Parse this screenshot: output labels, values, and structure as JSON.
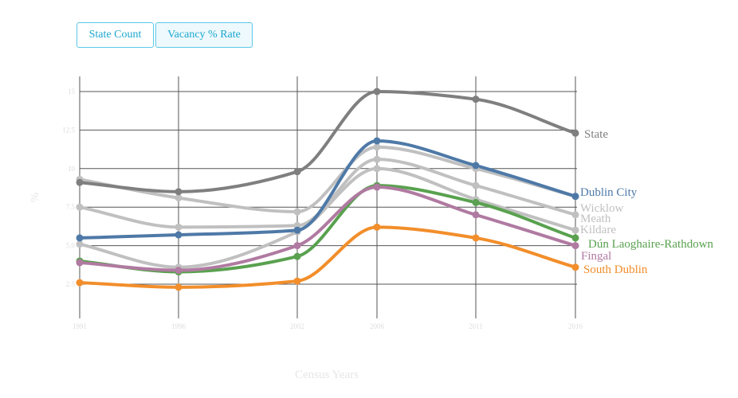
{
  "toggle_buttons": [
    {
      "label": "State Count",
      "active": false
    },
    {
      "label": "Vacancy % Rate",
      "active": true
    }
  ],
  "chart_data": {
    "type": "line",
    "title": "",
    "xlabel": "Census Years",
    "ylabel": "%",
    "categories": [
      "1991",
      "1996",
      "2002",
      "2006",
      "2011",
      "2016"
    ],
    "yticks": [
      "2.5",
      "5.0",
      "7.5",
      "10",
      "12.5",
      "15"
    ],
    "ylim": [
      0.5,
      16
    ],
    "grid": true,
    "series": [
      {
        "name": "State",
        "color": "#7f7f7f",
        "values": [
          9.1,
          8.5,
          9.8,
          15.0,
          14.5,
          12.3
        ]
      },
      {
        "name": "Dublin City",
        "color": "#4e79a7",
        "values": [
          5.5,
          5.7,
          6.0,
          11.8,
          10.2,
          8.2
        ]
      },
      {
        "name": "Wicklow",
        "color": "#c0c0c0",
        "values": [
          9.3,
          8.1,
          7.2,
          11.4,
          10.0,
          8.2
        ]
      },
      {
        "name": "Meath",
        "color": "#c0c0c0",
        "values": [
          7.5,
          6.2,
          6.3,
          10.6,
          8.9,
          7.0
        ]
      },
      {
        "name": "Kildare",
        "color": "#c0c0c0",
        "values": [
          5.1,
          3.6,
          5.9,
          10.0,
          8.0,
          6.0
        ]
      },
      {
        "name": "Dún Laoghaire-Rathdown",
        "color": "#59a14f",
        "values": [
          4.0,
          3.3,
          4.3,
          8.9,
          7.8,
          5.5
        ]
      },
      {
        "name": "Fingal",
        "color": "#b07aa1",
        "values": [
          3.9,
          3.4,
          5.0,
          8.8,
          7.0,
          5.0
        ]
      },
      {
        "name": "South Dublin",
        "color": "#f28e2b",
        "values": [
          2.6,
          2.3,
          2.7,
          6.2,
          5.5,
          3.6
        ]
      }
    ]
  }
}
